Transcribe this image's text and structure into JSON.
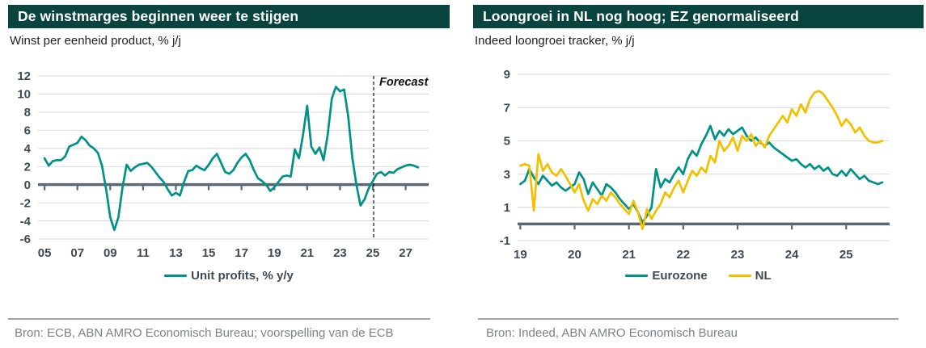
{
  "style": {
    "titlebar_bg": "#0a443f",
    "title_color": "#ffffff",
    "subtitle_color": "#222222",
    "tick_color": "#404a52",
    "legend_color": "#404a52",
    "axis_color": "#5a6671",
    "grid_color": "#d9d9d9",
    "divider_color": "#9ea4aa",
    "source_color": "#7e8285",
    "forecast_color": "#111111",
    "teal": "#009286",
    "yellow": "#f3c000"
  },
  "chart_data": [
    {
      "type": "line",
      "title": "De winstmarges beginnen weer te stijgen",
      "subtitle": "Winst per eenheid product, % j/j",
      "source": "Bron: ECB, ABN AMRO Economisch Bureau; voorspelling van de ECB",
      "grid": true,
      "legend_position": "bottom",
      "ylim": [
        -6,
        12
      ],
      "ytick_step": 2,
      "xlim": [
        2004.6,
        2028.4
      ],
      "xticks": [
        {
          "x": 2005,
          "label": "05"
        },
        {
          "x": 2007,
          "label": "07"
        },
        {
          "x": 2009,
          "label": "09"
        },
        {
          "x": 2011,
          "label": "11"
        },
        {
          "x": 2013,
          "label": "13"
        },
        {
          "x": 2015,
          "label": "15"
        },
        {
          "x": 2017,
          "label": "17"
        },
        {
          "x": 2019,
          "label": "19"
        },
        {
          "x": 2021,
          "label": "21"
        },
        {
          "x": 2023,
          "label": "23"
        },
        {
          "x": 2025,
          "label": "25"
        },
        {
          "x": 2027,
          "label": "27"
        }
      ],
      "forecast": {
        "x": 2025.05,
        "label": "Forecast"
      },
      "series": [
        {
          "name": "Unit profits, % y/y",
          "color": "#009286",
          "x_start": 2005.0,
          "x_step": 0.25,
          "values": [
            2.9,
            2.1,
            2.6,
            2.7,
            2.7,
            3.1,
            4.2,
            4.4,
            4.6,
            5.3,
            4.9,
            4.3,
            4.0,
            3.5,
            2.1,
            -0.5,
            -3.6,
            -5.0,
            -3.6,
            -0.3,
            2.2,
            1.5,
            1.9,
            2.2,
            2.3,
            2.4,
            2.0,
            1.4,
            0.8,
            0.3,
            -0.5,
            -1.2,
            -0.9,
            -1.2,
            0.3,
            1.5,
            1.6,
            2.1,
            1.8,
            1.6,
            2.2,
            2.9,
            3.4,
            2.4,
            1.4,
            1.2,
            1.6,
            2.4,
            3.0,
            3.4,
            2.7,
            1.6,
            0.7,
            0.4,
            0.0,
            -0.7,
            -0.3,
            0.3,
            0.9,
            1.0,
            0.9,
            3.9,
            2.9,
            5.5,
            8.7,
            4.2,
            3.4,
            4.1,
            2.7,
            5.5,
            9.5,
            10.8,
            10.3,
            10.5,
            7.5,
            3.0,
            0.0,
            -2.3,
            -1.6,
            -0.4,
            0.4,
            1.2,
            1.4,
            1.0,
            1.4,
            1.3,
            1.7,
            1.9,
            2.1,
            2.2,
            2.1,
            1.9
          ]
        }
      ]
    },
    {
      "type": "line",
      "title": "Loongroei in NL nog hoog; EZ genormaliseerd",
      "subtitle": "Indeed loongroei tracker, % j/j",
      "source": "Bron: Indeed, ABN AMRO Economisch Bureau",
      "grid": true,
      "legend_position": "bottom",
      "ylim": [
        -1,
        9
      ],
      "ytick_step": 2,
      "xlim": [
        2018.95,
        2025.8
      ],
      "xticks": [
        {
          "x": 2019,
          "label": "19"
        },
        {
          "x": 2020,
          "label": "20"
        },
        {
          "x": 2021,
          "label": "21"
        },
        {
          "x": 2022,
          "label": "22"
        },
        {
          "x": 2023,
          "label": "23"
        },
        {
          "x": 2024,
          "label": "24"
        },
        {
          "x": 2025,
          "label": "25"
        }
      ],
      "series": [
        {
          "name": "Eurozone",
          "color": "#009286",
          "x_start": 2019.0,
          "x_step": 0.083333,
          "values": [
            2.4,
            2.6,
            3.3,
            2.8,
            2.4,
            2.9,
            2.6,
            2.3,
            2.5,
            2.2,
            2.0,
            2.2,
            2.4,
            3.1,
            2.7,
            1.8,
            2.5,
            2.1,
            1.7,
            2.4,
            2.2,
            1.9,
            1.5,
            1.2,
            0.9,
            1.2,
            0.7,
            0.1,
            0.5,
            1.0,
            3.3,
            2.2,
            2.7,
            2.5,
            3.0,
            3.4,
            3.0,
            3.9,
            4.4,
            4.1,
            4.8,
            5.3,
            5.9,
            5.1,
            5.6,
            5.3,
            5.7,
            5.4,
            5.6,
            5.8,
            5.3,
            5.0,
            5.2,
            4.9,
            4.7,
            4.9,
            4.6,
            4.4,
            4.2,
            4.0,
            3.8,
            3.9,
            3.6,
            3.4,
            3.6,
            3.3,
            3.5,
            3.2,
            3.4,
            3.0,
            2.9,
            3.2,
            2.9,
            3.3,
            3.0,
            2.7,
            2.9,
            2.6,
            2.5,
            2.4,
            2.5
          ]
        },
        {
          "name": "NL",
          "color": "#f3c000",
          "x_start": 2019.0,
          "x_step": 0.083333,
          "values": [
            3.5,
            3.6,
            3.5,
            0.8,
            4.2,
            3.2,
            3.6,
            3.1,
            2.9,
            3.3,
            2.9,
            2.4,
            1.9,
            2.4,
            1.4,
            0.8,
            1.5,
            1.2,
            1.7,
            1.4,
            1.9,
            1.6,
            1.2,
            0.9,
            0.6,
            1.4,
            0.7,
            -0.3,
            0.9,
            0.3,
            0.8,
            1.2,
            1.9,
            1.6,
            2.2,
            2.6,
            1.9,
            2.6,
            3.2,
            2.9,
            3.4,
            3.1,
            4.1,
            3.7,
            5.0,
            4.4,
            4.7,
            5.2,
            4.4,
            5.3,
            5.0,
            5.4,
            4.7,
            5.0,
            4.6,
            5.3,
            5.7,
            6.1,
            6.5,
            6.1,
            6.9,
            6.5,
            7.2,
            6.7,
            7.5,
            7.9,
            8.0,
            7.8,
            7.4,
            7.0,
            6.5,
            5.9,
            6.3,
            6.0,
            5.5,
            5.8,
            5.3,
            5.0,
            4.9,
            4.9,
            5.0
          ]
        }
      ]
    }
  ]
}
